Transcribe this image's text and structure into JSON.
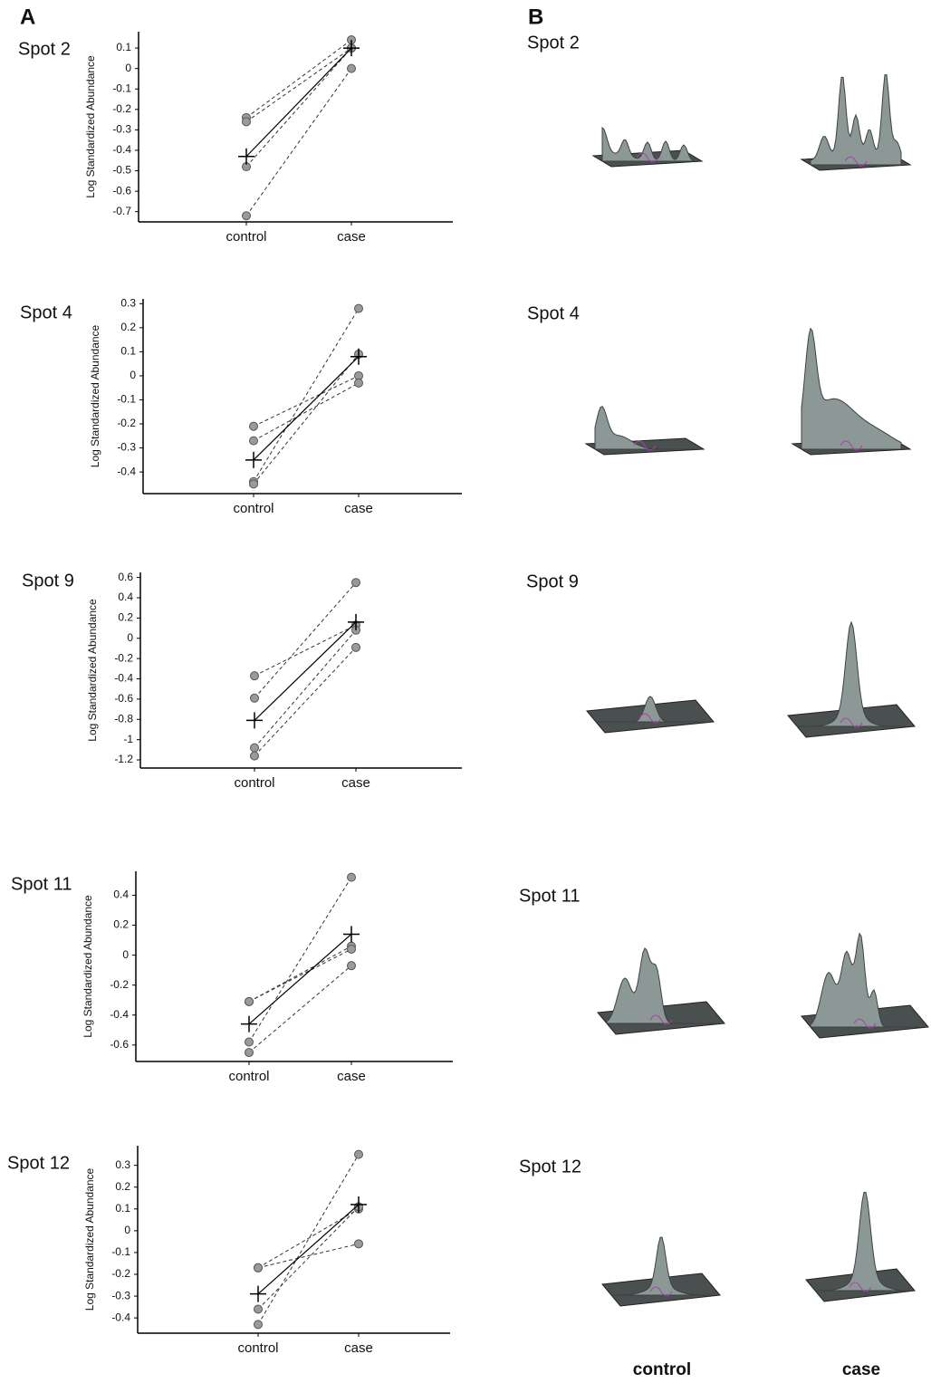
{
  "panel_labels": {
    "A": "A",
    "B": "B"
  },
  "chart_data": [
    {
      "type": "line",
      "title": "Spot 2",
      "y_label": "Log Standardized Abundance",
      "categories": [
        "control",
        "case"
      ],
      "ylim": [
        -0.75,
        0.18
      ],
      "yticks": [
        0.1,
        0,
        -0.1,
        -0.2,
        -0.3,
        -0.4,
        -0.5,
        -0.6,
        -0.7
      ],
      "series": [
        {
          "color": "#333333",
          "dashed": true,
          "marker": "circle",
          "values": [
            -0.24,
            0.14
          ]
        },
        {
          "color": "#333333",
          "dashed": true,
          "marker": "circle",
          "values": [
            -0.26,
            0.1
          ]
        },
        {
          "color": "#333333",
          "dashed": true,
          "marker": "circle",
          "values": [
            -0.48,
            0.1
          ]
        },
        {
          "color": "#333333",
          "dashed": true,
          "marker": "circle",
          "values": [
            -0.72,
            0.0
          ]
        },
        {
          "color": "#000000",
          "dashed": false,
          "marker": "plus",
          "values": [
            -0.43,
            0.1
          ]
        }
      ]
    },
    {
      "type": "line",
      "title": "Spot 4",
      "y_label": "Log Standardized Abundance",
      "categories": [
        "control",
        "case"
      ],
      "ylim": [
        -0.49,
        0.32
      ],
      "yticks": [
        0.3,
        0.2,
        0.1,
        0,
        -0.1,
        -0.2,
        -0.3,
        -0.4
      ],
      "series": [
        {
          "color": "#333333",
          "dashed": true,
          "marker": "circle",
          "values": [
            -0.21,
            0.0
          ]
        },
        {
          "color": "#333333",
          "dashed": true,
          "marker": "circle",
          "values": [
            -0.27,
            -0.03
          ]
        },
        {
          "color": "#333333",
          "dashed": true,
          "marker": "circle",
          "values": [
            -0.44,
            0.28
          ]
        },
        {
          "color": "#333333",
          "dashed": true,
          "marker": "circle",
          "values": [
            -0.45,
            0.09
          ]
        },
        {
          "color": "#000000",
          "dashed": false,
          "marker": "plus",
          "values": [
            -0.35,
            0.08
          ]
        }
      ]
    },
    {
      "type": "line",
      "title": "Spot 9",
      "y_label": "Log Standardized Abundance",
      "categories": [
        "control",
        "case"
      ],
      "ylim": [
        -1.28,
        0.65
      ],
      "yticks": [
        0.6,
        0.4,
        0.2,
        0,
        -0.2,
        -0.4,
        -0.6,
        -0.8,
        -1,
        -1.2
      ],
      "series": [
        {
          "color": "#333333",
          "dashed": true,
          "marker": "circle",
          "values": [
            -0.37,
            0.13
          ]
        },
        {
          "color": "#333333",
          "dashed": true,
          "marker": "circle",
          "values": [
            -0.59,
            0.55
          ]
        },
        {
          "color": "#333333",
          "dashed": true,
          "marker": "circle",
          "values": [
            -1.08,
            0.08
          ]
        },
        {
          "color": "#333333",
          "dashed": true,
          "marker": "circle",
          "values": [
            -1.16,
            -0.09
          ]
        },
        {
          "color": "#000000",
          "dashed": false,
          "marker": "plus",
          "values": [
            -0.81,
            0.16
          ]
        }
      ]
    },
    {
      "type": "line",
      "title": "Spot 11",
      "y_label": "Log Standardized Abundance",
      "categories": [
        "control",
        "case"
      ],
      "ylim": [
        -0.71,
        0.56
      ],
      "yticks": [
        0.4,
        0.2,
        0,
        -0.2,
        -0.4,
        -0.6
      ],
      "series": [
        {
          "color": "#333333",
          "dashed": true,
          "marker": "circle",
          "values": [
            -0.31,
            0.06
          ]
        },
        {
          "color": "#333333",
          "dashed": true,
          "marker": "circle",
          "values": [
            -0.31,
            0.04
          ]
        },
        {
          "color": "#333333",
          "dashed": true,
          "marker": "circle",
          "values": [
            -0.58,
            0.52
          ]
        },
        {
          "color": "#333333",
          "dashed": true,
          "marker": "circle",
          "values": [
            -0.65,
            -0.07
          ]
        },
        {
          "color": "#000000",
          "dashed": false,
          "marker": "plus",
          "values": [
            -0.46,
            0.14
          ]
        }
      ]
    },
    {
      "type": "line",
      "title": "Spot 12",
      "y_label": "Log Standardized Abundance",
      "categories": [
        "control",
        "case"
      ],
      "ylim": [
        -0.47,
        0.39
      ],
      "yticks": [
        0.3,
        0.2,
        0.1,
        0,
        -0.1,
        -0.2,
        -0.3,
        -0.4
      ],
      "series": [
        {
          "color": "#333333",
          "dashed": true,
          "marker": "circle",
          "values": [
            -0.17,
            0.1
          ]
        },
        {
          "color": "#333333",
          "dashed": true,
          "marker": "circle",
          "values": [
            -0.17,
            -0.06
          ]
        },
        {
          "color": "#333333",
          "dashed": true,
          "marker": "circle",
          "values": [
            -0.36,
            0.11
          ]
        },
        {
          "color": "#333333",
          "dashed": true,
          "marker": "circle",
          "values": [
            -0.43,
            0.35
          ]
        },
        {
          "color": "#000000",
          "dashed": false,
          "marker": "plus",
          "values": [
            -0.29,
            0.12
          ]
        }
      ]
    }
  ],
  "surface_panel": {
    "spots": [
      "Spot 2",
      "Spot 4",
      "Spot 9",
      "Spot 11",
      "Spot 12"
    ],
    "columns": [
      "control",
      "case"
    ]
  }
}
